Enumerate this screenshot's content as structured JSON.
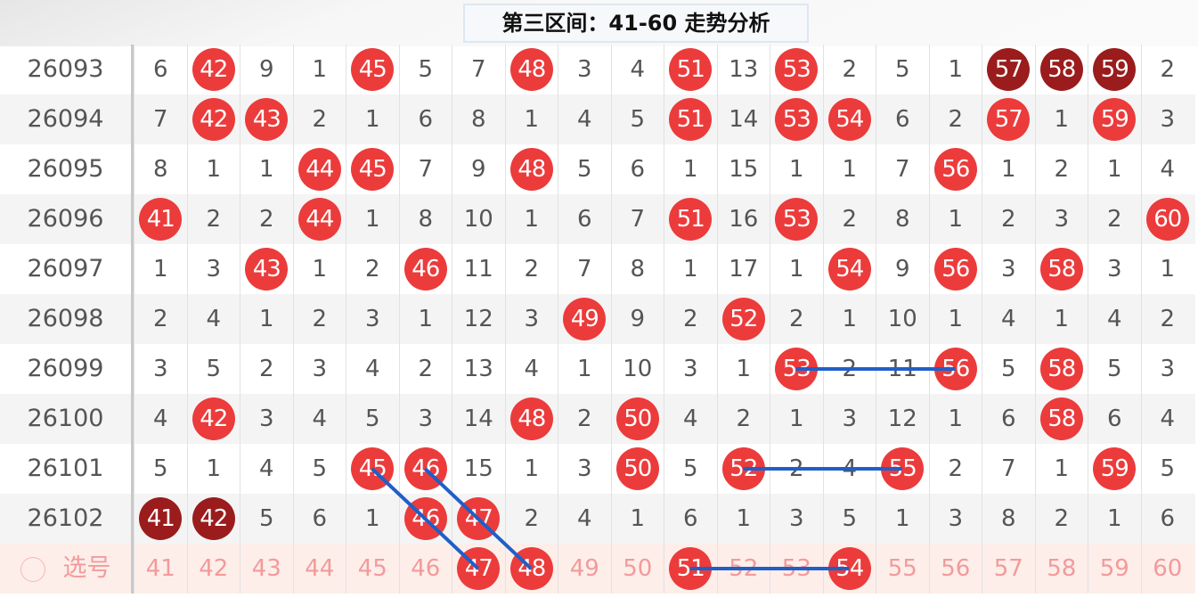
{
  "title": "第三区间：41-60  走势分析",
  "columns": [
    41,
    42,
    43,
    44,
    45,
    46,
    47,
    48,
    49,
    50,
    51,
    52,
    53,
    54,
    55,
    56,
    57,
    58,
    59,
    60
  ],
  "rows": [
    {
      "issue": "26093",
      "cells": [
        6,
        42,
        9,
        1,
        45,
        5,
        7,
        48,
        3,
        4,
        51,
        13,
        53,
        2,
        5,
        1,
        57,
        58,
        59,
        2
      ],
      "dark": [
        57,
        58,
        59
      ]
    },
    {
      "issue": "26094",
      "cells": [
        7,
        42,
        43,
        2,
        1,
        6,
        8,
        1,
        4,
        5,
        51,
        14,
        53,
        54,
        6,
        2,
        57,
        1,
        59,
        3
      ],
      "dark": []
    },
    {
      "issue": "26095",
      "cells": [
        8,
        1,
        1,
        44,
        45,
        7,
        9,
        48,
        5,
        6,
        1,
        15,
        1,
        1,
        7,
        56,
        1,
        2,
        1,
        4
      ],
      "dark": []
    },
    {
      "issue": "26096",
      "cells": [
        41,
        2,
        2,
        44,
        1,
        8,
        10,
        1,
        6,
        7,
        51,
        16,
        53,
        2,
        8,
        1,
        2,
        3,
        2,
        60
      ],
      "dark": []
    },
    {
      "issue": "26097",
      "cells": [
        1,
        3,
        43,
        1,
        2,
        46,
        11,
        2,
        7,
        8,
        1,
        17,
        1,
        54,
        9,
        56,
        3,
        58,
        3,
        1
      ],
      "dark": []
    },
    {
      "issue": "26098",
      "cells": [
        2,
        4,
        1,
        2,
        3,
        1,
        12,
        3,
        49,
        9,
        2,
        52,
        2,
        1,
        10,
        1,
        4,
        1,
        4,
        2
      ],
      "dark": []
    },
    {
      "issue": "26099",
      "cells": [
        3,
        5,
        2,
        3,
        4,
        2,
        13,
        4,
        1,
        10,
        3,
        1,
        53,
        2,
        11,
        56,
        5,
        58,
        5,
        3
      ],
      "dark": []
    },
    {
      "issue": "26100",
      "cells": [
        4,
        42,
        3,
        4,
        5,
        3,
        14,
        48,
        2,
        50,
        4,
        2,
        1,
        3,
        12,
        1,
        6,
        58,
        6,
        4
      ],
      "dark": []
    },
    {
      "issue": "26101",
      "cells": [
        5,
        1,
        4,
        5,
        45,
        46,
        15,
        1,
        3,
        50,
        5,
        52,
        2,
        4,
        55,
        2,
        7,
        1,
        59,
        5
      ],
      "dark": []
    },
    {
      "issue": "26102",
      "cells": [
        41,
        42,
        5,
        6,
        1,
        46,
        47,
        2,
        4,
        1,
        6,
        1,
        3,
        5,
        1,
        3,
        8,
        2,
        1,
        6
      ],
      "dark": [
        41,
        42
      ]
    }
  ],
  "selection": {
    "label": "选号",
    "selected": [
      47,
      48,
      51,
      54
    ]
  },
  "trend_lines": [
    {
      "from": [
        "26101",
        45
      ],
      "to": [
        "选号",
        47
      ]
    },
    {
      "from": [
        "26101",
        46
      ],
      "to": [
        "选号",
        48
      ]
    },
    {
      "from": [
        "26099",
        53
      ],
      "to": [
        "26099",
        56
      ]
    },
    {
      "from": [
        "26101",
        52
      ],
      "to": [
        "26101",
        55
      ]
    },
    {
      "from": [
        "选号",
        51
      ],
      "to": [
        "选号",
        54
      ]
    }
  ],
  "colors": {
    "ball": "#ec3b3b",
    "ball_dark": "#9b1c1c",
    "line": "#1f5fc8",
    "selection_row": "#fdeeea"
  }
}
